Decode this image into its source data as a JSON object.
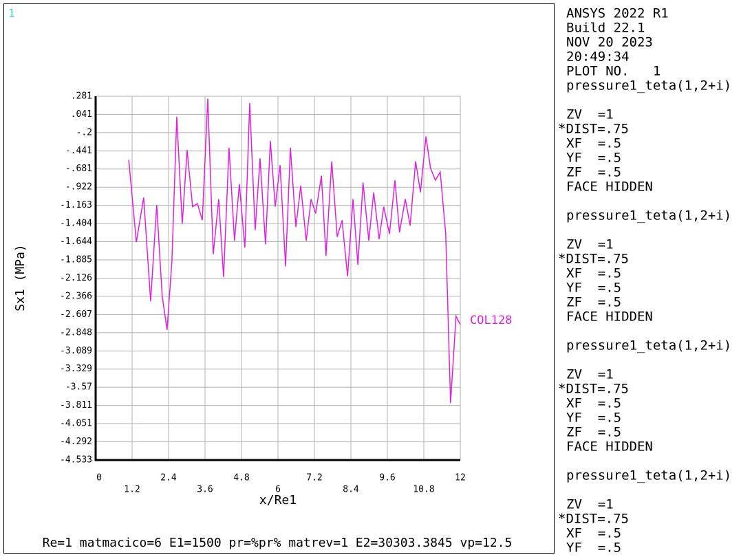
{
  "window_number": "1",
  "chart_data": {
    "type": "line",
    "x_label": "x/Re1",
    "y_label": "Sx1 (MPa)",
    "footer": "Re=1 matmacico=6 E1=1500 pr=%pr% matrev=1 E2=30303.3845 vp=12.5",
    "x": [
      1.09,
      1.34,
      1.58,
      1.81,
      2.01,
      2.19,
      2.35,
      2.51,
      2.67,
      2.85,
      3.01,
      3.19,
      3.35,
      3.51,
      3.69,
      3.87,
      4.05,
      4.21,
      4.39,
      4.57,
      4.73,
      4.91,
      5.07,
      5.25,
      5.41,
      5.59,
      5.75,
      5.91,
      6.07,
      6.25,
      6.41,
      6.59,
      6.75,
      6.93,
      7.09,
      7.24,
      7.43,
      7.58,
      7.77,
      7.95,
      8.11,
      8.29,
      8.47,
      8.63,
      8.8,
      8.99,
      9.15,
      9.33,
      9.48,
      9.67,
      9.85,
      10.0,
      10.19,
      10.35,
      10.53,
      10.69,
      10.87,
      11.02,
      11.18,
      11.34,
      11.52,
      11.68,
      11.86,
      12.0
    ],
    "series": [
      {
        "name": "COL128",
        "color": "#e020e0",
        "values": [
          -0.56,
          -1.65,
          -1.06,
          -2.43,
          -1.16,
          -2.36,
          -2.81,
          -1.9,
          0.01,
          -1.41,
          -0.43,
          -1.18,
          -1.14,
          -1.36,
          0.25,
          -1.81,
          -1.08,
          -2.11,
          -0.4,
          -1.63,
          -0.88,
          -1.72,
          0.19,
          -1.49,
          -0.54,
          -1.68,
          -0.31,
          -1.18,
          -0.63,
          -1.97,
          -0.4,
          -1.45,
          -0.9,
          -1.63,
          -1.08,
          -1.27,
          -0.77,
          -1.83,
          -0.58,
          -1.58,
          -1.36,
          -2.1,
          -1.08,
          -1.95,
          -0.86,
          -1.63,
          -0.99,
          -1.61,
          -1.18,
          -1.54,
          -0.83,
          -1.52,
          -1.08,
          -1.43,
          -0.58,
          -0.99,
          -0.25,
          -0.67,
          -0.83,
          -0.72,
          -1.54,
          -3.78,
          -2.63,
          -2.74
        ]
      }
    ],
    "xlim": [
      0,
      12
    ],
    "xticks": [
      0,
      1.2,
      2.4,
      3.6,
      4.8,
      6,
      7.2,
      8.4,
      9.6,
      10.8,
      12
    ],
    "ylim": [
      -4.533,
      0.281
    ],
    "yticks": [
      {
        "value": 0.281,
        "label": ".281"
      },
      {
        "value": 0.041,
        "label": ".041"
      },
      {
        "value": -0.2,
        "label": "-.2"
      },
      {
        "value": -0.441,
        "label": "-.441"
      },
      {
        "value": -0.681,
        "label": "-.681"
      },
      {
        "value": -0.922,
        "label": "-.922"
      },
      -1.163,
      -1.404,
      -1.644,
      -1.885,
      -2.126,
      -2.366,
      -2.607,
      -2.848,
      -3.089,
      -3.329,
      {
        "value": -3.57,
        "label": "-3.57"
      },
      -3.811,
      -4.051,
      -4.292,
      -4.533
    ],
    "grid": true
  },
  "sidebar": {
    "header": [
      "ANSYS 2022 R1",
      "Build 22.1",
      "NOV 20 2023",
      "20:49:34",
      "PLOT NO.   1"
    ],
    "blocks": [
      {
        "title": "pressure1_teta(1,2+i)",
        "lines": [
          "ZV  =1",
          "*DIST=.75",
          "XF  =.5",
          "YF  =.5",
          "ZF  =.5",
          "FACE HIDDEN"
        ]
      },
      {
        "title": "pressure1_teta(1,2+i)",
        "lines": [
          "ZV  =1",
          "*DIST=.75",
          "XF  =.5",
          "YF  =.5",
          "ZF  =.5",
          "FACE HIDDEN"
        ]
      },
      {
        "title": "pressure1_teta(1,2+i)",
        "lines": [
          "ZV  =1",
          "*DIST=.75",
          "XF  =.5",
          "YF  =.5",
          "ZF  =.5",
          "FACE HIDDEN"
        ]
      },
      {
        "title": "pressure1_teta(1,2+i)",
        "lines": [
          "ZV  =1",
          "*DIST=.75",
          "XF  =.5",
          "YF  =.5"
        ]
      }
    ]
  }
}
